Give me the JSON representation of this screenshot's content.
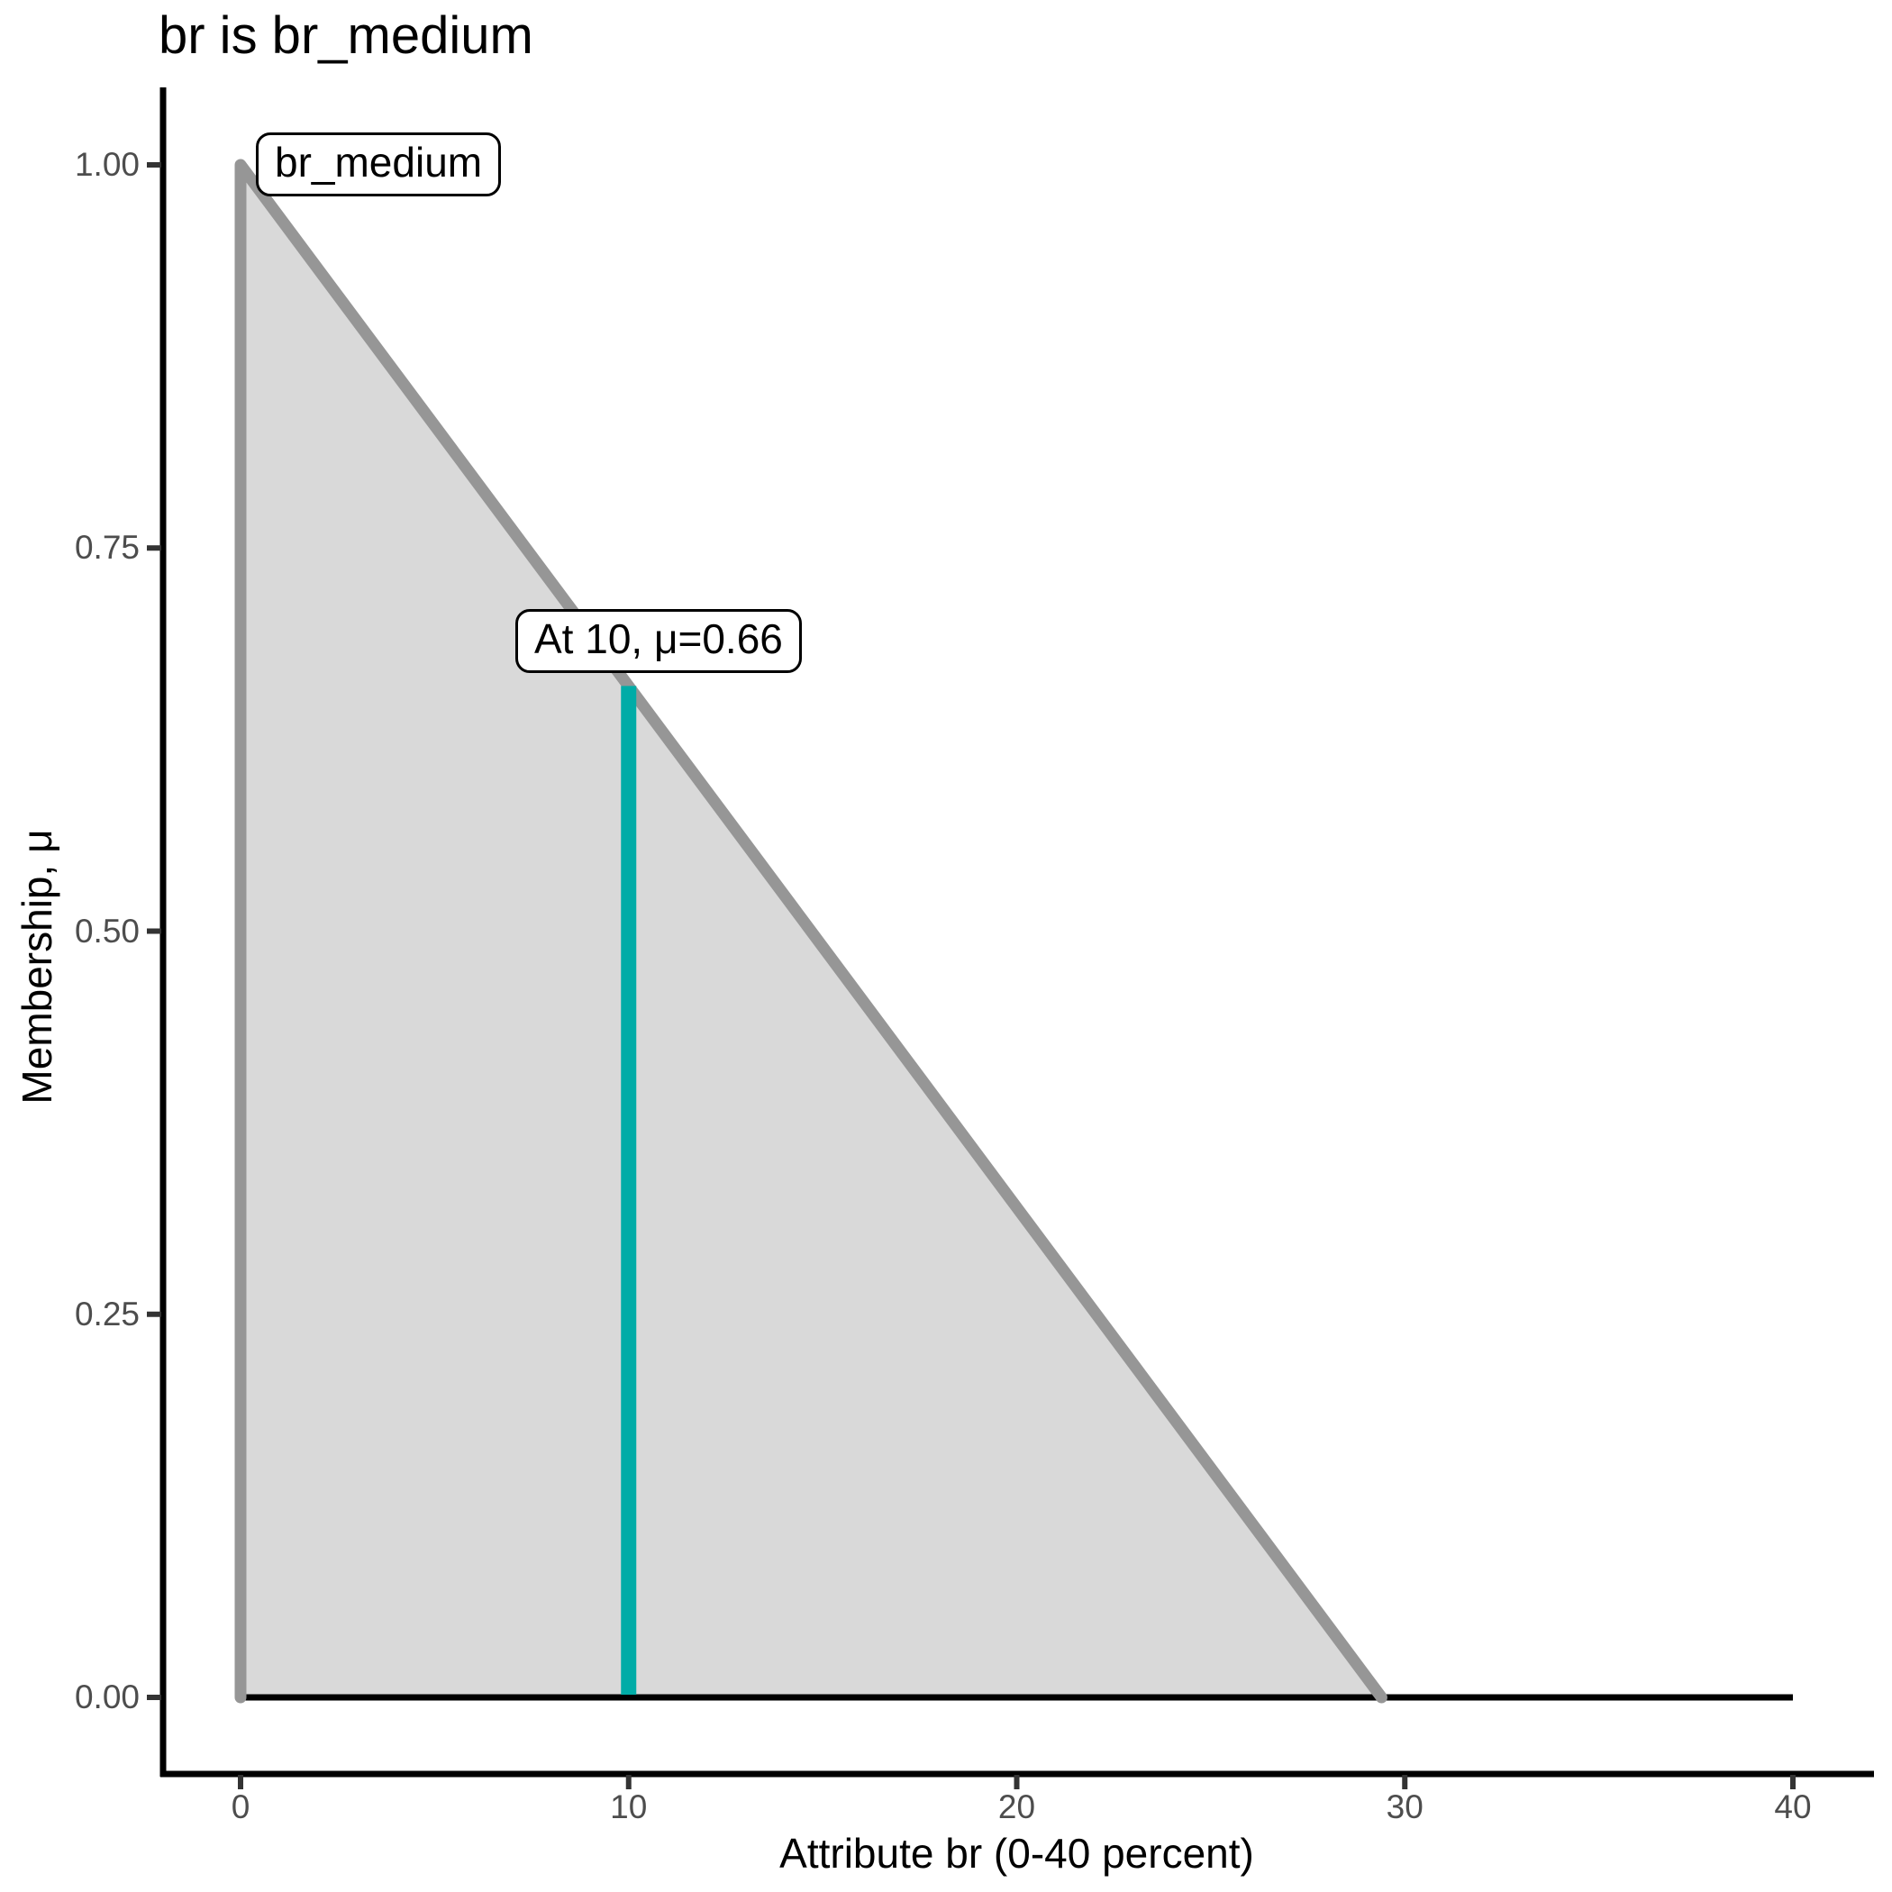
{
  "chart_data": {
    "type": "area",
    "title": "br is br_medium",
    "xlabel": "Attribute br (0-40 percent)",
    "ylabel": "Membership, μ",
    "xlim": [
      0,
      40
    ],
    "ylim": [
      0,
      1
    ],
    "x_ticks": [
      0,
      10,
      20,
      30,
      40
    ],
    "y_ticks": [
      "0.00",
      "0.25",
      "0.50",
      "0.75",
      "1.00"
    ],
    "grid": false,
    "legend": "none",
    "series": [
      {
        "name": "br_medium",
        "kind": "fuzzy-membership-function",
        "shape": "triangular",
        "points": [
          [
            0,
            0
          ],
          [
            0,
            1
          ],
          [
            29.4,
            0
          ],
          [
            40,
            0
          ]
        ],
        "fill_color": "#D9D9D9",
        "line_color": "#969696",
        "baseline_color": "#000000"
      }
    ],
    "crisp_input": {
      "x": 10,
      "mu": 0.66,
      "line_color": "#00ACA7"
    },
    "annotations": [
      {
        "text": "br_medium",
        "x": 0,
        "y": 1.0
      },
      {
        "text": "At 10, μ=0.66",
        "x": 10,
        "y": 0.66
      }
    ],
    "axis_color": "#000000",
    "tick_color": "#333333",
    "tick_label_color": "#4D4D4D",
    "background_color": "#FFFFFF"
  }
}
